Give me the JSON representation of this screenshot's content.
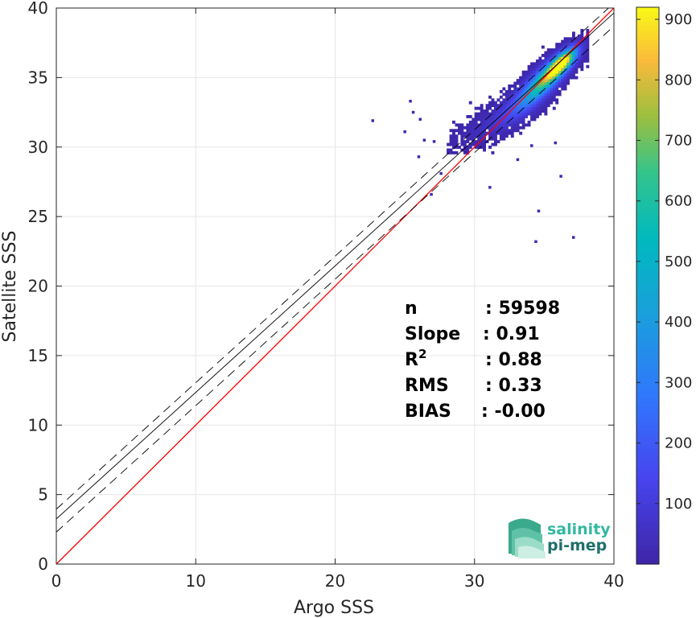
{
  "chart_data": {
    "type": "heatmap",
    "xlabel": "Argo SSS",
    "ylabel": "Satellite SSS",
    "xlim": [
      0,
      40
    ],
    "ylim": [
      0,
      40
    ],
    "xticks": [
      "0",
      "10",
      "20",
      "30",
      "40"
    ],
    "yticks": [
      "0",
      "5",
      "10",
      "15",
      "20",
      "25",
      "30",
      "35",
      "40"
    ],
    "grid": true,
    "colorbar": {
      "range": [
        0,
        920
      ],
      "ticks": [
        "100",
        "200",
        "300",
        "400",
        "500",
        "600",
        "700",
        "800",
        "900"
      ],
      "colormap": "parula"
    },
    "lines": [
      {
        "kind": "one-to-one",
        "color": "#ff0000",
        "slope": 1.0,
        "intercept": 0.0,
        "style": "solid"
      },
      {
        "kind": "regression",
        "color": "#000000",
        "slope": 0.91,
        "intercept": 3.25,
        "style": "solid"
      },
      {
        "kind": "regression-upper",
        "color": "#000000",
        "slope": 0.91,
        "intercept": 3.95,
        "style": "dashed"
      },
      {
        "kind": "regression-lower",
        "color": "#000000",
        "slope": 0.91,
        "intercept": 2.3,
        "style": "dashed"
      }
    ],
    "density_clusters": [
      {
        "x": 36.2,
        "y": 36.0,
        "sx": 0.7,
        "sy": 0.7,
        "count": 900
      },
      {
        "x": 35.2,
        "y": 35.0,
        "sx": 0.9,
        "sy": 0.9,
        "count": 500
      },
      {
        "x": 34.2,
        "y": 34.0,
        "sx": 1.0,
        "sy": 1.0,
        "count": 280
      },
      {
        "x": 33.0,
        "y": 32.8,
        "sx": 1.2,
        "sy": 1.0,
        "count": 120
      },
      {
        "x": 31.0,
        "y": 31.5,
        "sx": 1.5,
        "sy": 0.9,
        "count": 40
      }
    ],
    "outliers": [
      [
        22.6,
        31.8
      ],
      [
        25.3,
        33.2
      ],
      [
        25.5,
        32.4
      ],
      [
        24.9,
        31.0
      ],
      [
        26.3,
        30.4
      ],
      [
        25.9,
        29.2
      ],
      [
        27.0,
        30.3
      ],
      [
        27.5,
        28.0
      ],
      [
        26.8,
        26.5
      ],
      [
        26.0,
        31.9
      ],
      [
        31.0,
        27.0
      ],
      [
        34.5,
        25.3
      ],
      [
        34.3,
        23.1
      ],
      [
        36.1,
        27.8
      ],
      [
        37.0,
        23.4
      ],
      [
        35.7,
        30.2
      ],
      [
        33.0,
        29.0
      ],
      [
        34.0,
        30.0
      ]
    ],
    "stats": [
      {
        "label": "n",
        "value": ": 59598"
      },
      {
        "label": "Slope",
        "value": ": 0.91"
      },
      {
        "label": "R",
        "sup": "2",
        "value": ": 0.88"
      },
      {
        "label": "RMS",
        "value": ": 0.33"
      },
      {
        "label": "BIAS",
        "value": ": -0.00"
      }
    ]
  },
  "logo": {
    "line1": "salinity",
    "line2": "pi-mep",
    "colors": {
      "primary": "#33b8a0",
      "secondary": "#1f6f6a"
    }
  }
}
